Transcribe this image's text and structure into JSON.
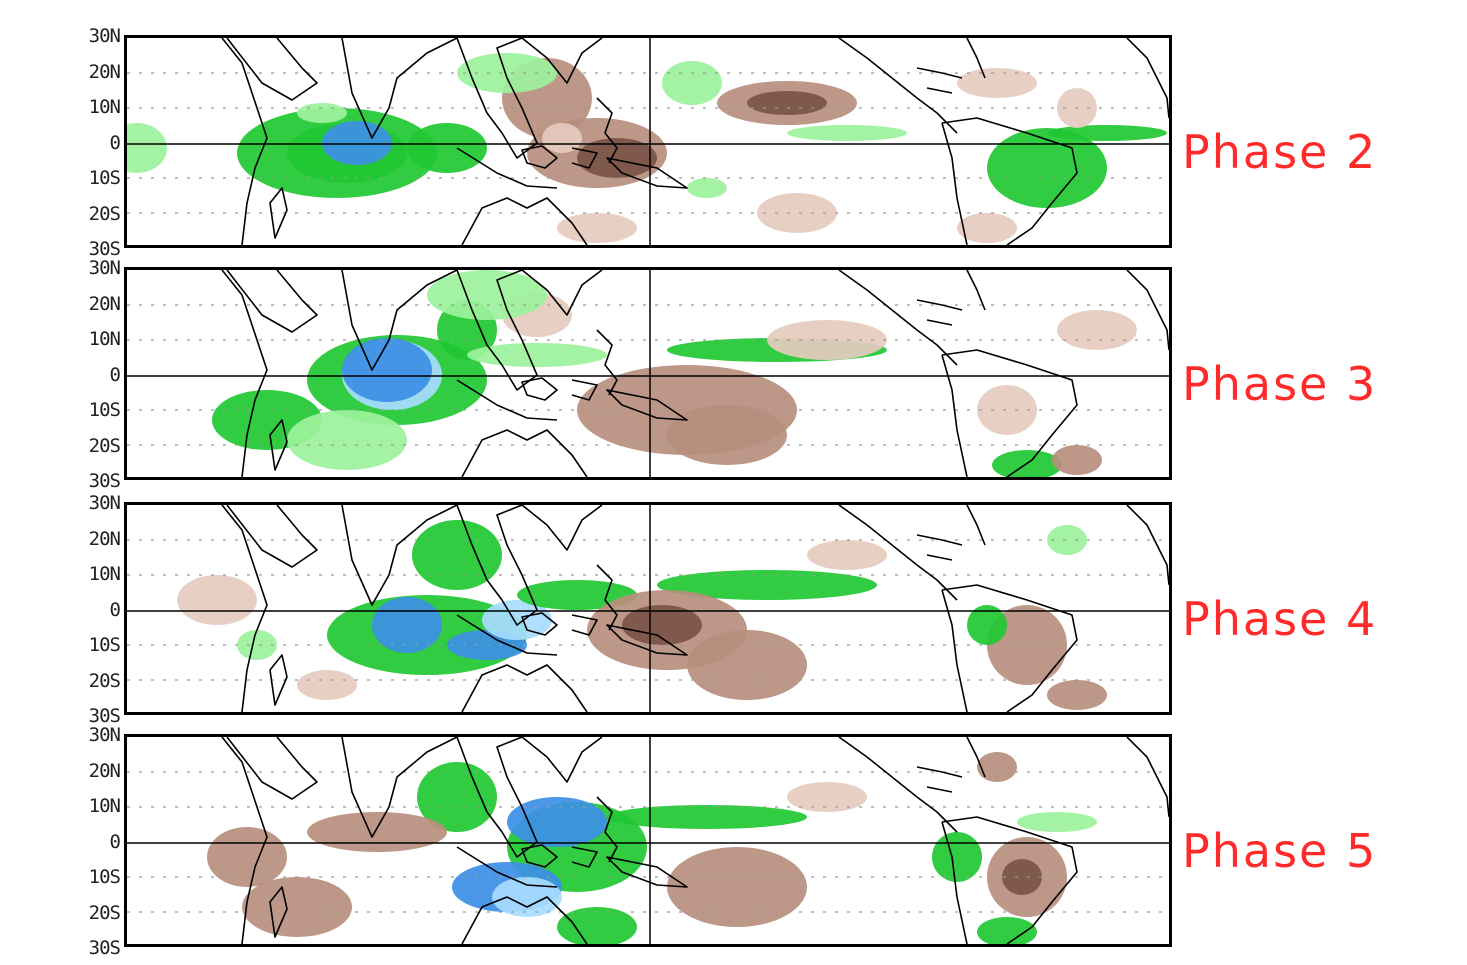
{
  "latitude_ticks": [
    "30N",
    "20N",
    "10N",
    "0",
    "10S",
    "20S",
    "30S"
  ],
  "panels": [
    {
      "label": "Phase 2"
    },
    {
      "label": "Phase 3"
    },
    {
      "label": "Phase 4"
    },
    {
      "label": "Phase 5"
    }
  ],
  "colors": {
    "strong_wet": "#3d8fe6",
    "wet_edge": "#a8dcff",
    "moderate_wet": "#1fc832",
    "weak_wet": "#9cf29c",
    "weak_dry": "#e6cbbf",
    "moderate_dry": "#b78e7d",
    "strong_dry": "#7a5446",
    "phase_label": "#ff2b2b"
  }
}
